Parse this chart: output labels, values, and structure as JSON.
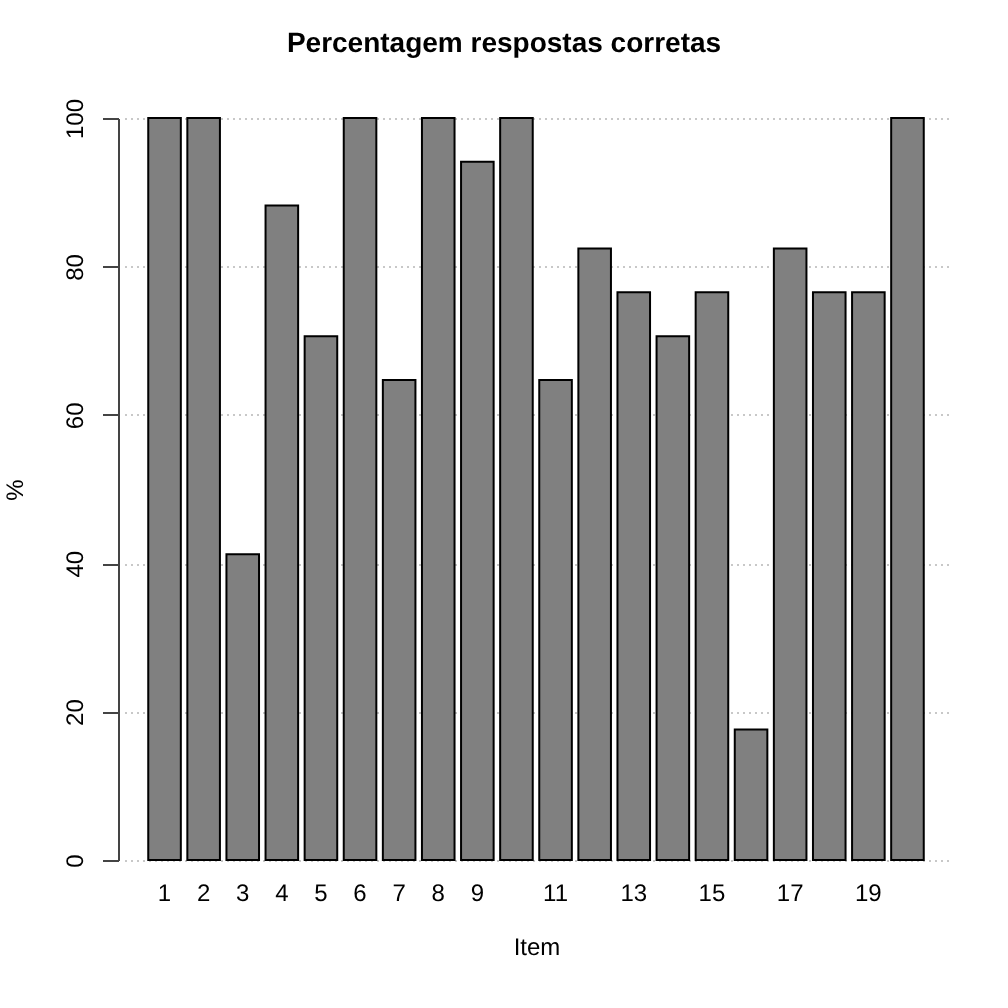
{
  "chart_data": {
    "type": "bar",
    "title": "Percentagem respostas corretas",
    "xlabel": "Item",
    "ylabel": "%",
    "categories": [
      "1",
      "2",
      "3",
      "4",
      "5",
      "6",
      "7",
      "8",
      "9",
      null,
      "11",
      null,
      "13",
      null,
      "15",
      null,
      "17",
      null,
      "19",
      null
    ],
    "values": [
      100,
      100,
      41.2,
      88.2,
      70.6,
      100,
      64.7,
      100,
      94.1,
      100,
      64.7,
      82.4,
      76.5,
      70.6,
      76.5,
      17.6,
      82.4,
      76.5,
      76.5,
      100
    ],
    "color": "#808080",
    "ylim": [
      0,
      100
    ],
    "yticks": [
      0,
      20,
      40,
      60,
      80,
      100
    ],
    "grid": "y"
  }
}
